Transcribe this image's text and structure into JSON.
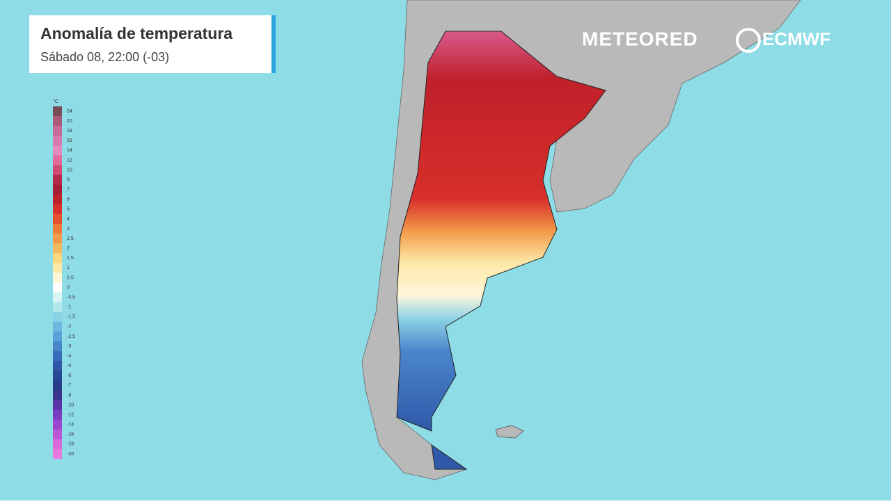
{
  "header": {
    "title": "Anomalía de temperatura",
    "subtitle": "Sábado 08, 22:00 (-03)"
  },
  "logos": {
    "brand": "METEORED",
    "partner": "ECMWF"
  },
  "legend": {
    "unit": "°C",
    "entries": [
      {
        "value": 24,
        "color": "#7a4a55"
      },
      {
        "value": 20,
        "color": "#a85a78"
      },
      {
        "value": 18,
        "color": "#c76a9a"
      },
      {
        "value": 16,
        "color": "#d77ab0"
      },
      {
        "value": 14,
        "color": "#e48ac0"
      },
      {
        "value": 12,
        "color": "#e06b9a"
      },
      {
        "value": 10,
        "color": "#d04a75"
      },
      {
        "value": 8,
        "color": "#b52a4a"
      },
      {
        "value": 7,
        "color": "#a51e35"
      },
      {
        "value": 6,
        "color": "#c0202a"
      },
      {
        "value": 5,
        "color": "#d8302a"
      },
      {
        "value": 4,
        "color": "#e5502e"
      },
      {
        "value": 3,
        "color": "#ee7a3a"
      },
      {
        "value": 2.5,
        "color": "#f39a4a"
      },
      {
        "value": 2,
        "color": "#f7b95e"
      },
      {
        "value": 1.5,
        "color": "#fbd67e"
      },
      {
        "value": 1,
        "color": "#fde9a8"
      },
      {
        "value": 0.5,
        "color": "#fff6d8"
      },
      {
        "value": 0,
        "color": "#ffffff"
      },
      {
        "value": -0.5,
        "color": "#d8f4f4"
      },
      {
        "value": -1,
        "color": "#b0e8ec"
      },
      {
        "value": -1.5,
        "color": "#8cd2e6"
      },
      {
        "value": -2,
        "color": "#6fb8e0"
      },
      {
        "value": -2.5,
        "color": "#5aa0d8"
      },
      {
        "value": -3,
        "color": "#4a86cc"
      },
      {
        "value": -4,
        "color": "#3a6cbc"
      },
      {
        "value": -5,
        "color": "#2f58a8"
      },
      {
        "value": -6,
        "color": "#264894"
      },
      {
        "value": -7,
        "color": "#283c88"
      },
      {
        "value": -8,
        "color": "#3a3490"
      },
      {
        "value": -10,
        "color": "#5a34a8"
      },
      {
        "value": -12,
        "color": "#7a3cc0"
      },
      {
        "value": -14,
        "color": "#9a48d0"
      },
      {
        "value": -16,
        "color": "#ba58d8"
      },
      {
        "value": -18,
        "color": "#d86ada"
      },
      {
        "value": -20,
        "color": "#e87ade"
      }
    ]
  }
}
